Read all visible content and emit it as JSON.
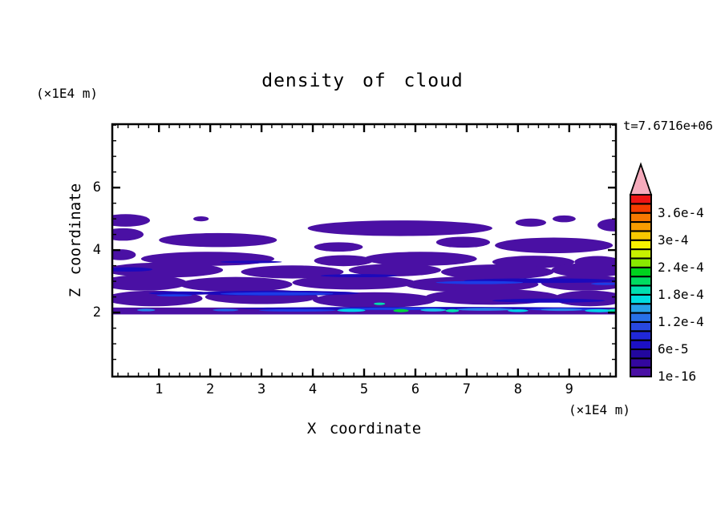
{
  "chart_data": {
    "type": "filled_contour",
    "title": "density of cloud",
    "time_annotation": "t=7.6716e+06",
    "xlabel": "X coordinate",
    "xunit": "(×1E4 m)",
    "ylabel": "Z coordinate",
    "yunit": "(×1E4 m)",
    "x_range": [
      0.09,
      9.91
    ],
    "x_ticks": [
      1,
      2,
      3,
      4,
      5,
      6,
      7,
      8,
      9
    ],
    "x_minor_step": 0.2,
    "z_range": [
      -0.05,
      8.03
    ],
    "z_ticks": [
      2,
      4,
      6
    ],
    "z_minor_step": 0.5,
    "grid": false,
    "frame_color": "#000000",
    "background_color": "#ffffff",
    "colorbar": {
      "segments": 20,
      "segment_value_step": "2e-5",
      "boundary_labels_bottom_up": [
        "1e-16",
        "6e-5",
        "1.2e-4",
        "1.8e-4",
        "2.4e-4",
        "3e-4",
        "3.6e-4"
      ],
      "label_every_n_segments": 3,
      "segment_colors_bottom_up": [
        "#4A10A4",
        "#3307A0",
        "#22079E",
        "#1C10C4",
        "#2028D8",
        "#2848E0",
        "#2870E8",
        "#28A0E8",
        "#00DCE0",
        "#00DFB0",
        "#00DC60",
        "#00D21E",
        "#88E800",
        "#C8F000",
        "#F8F000",
        "#F8C800",
        "#F89C00",
        "#F87800",
        "#F53C00",
        "#EE1414"
      ],
      "overflow_arrow_color": "#F5ABBC"
    },
    "cloud": {
      "description": "horizontal streaky cloud layer between z=2 and z=5.2 (x1E4 m); lowest contour level fills in purple; sharp flat cloud base at z=2",
      "fill_color": "#4A10A4",
      "navy_color": "#1C09BC",
      "blue_color": "#1C3CE6",
      "base_altitude": 2.0,
      "top_altitude": 5.2,
      "baseline_band": {
        "x0": 0.09,
        "x1": 9.91,
        "z0": 1.94,
        "z1": 2.16
      },
      "purple_blobs": [
        [
          0.35,
          4.95,
          0.95,
          0.4
        ],
        [
          1.82,
          5.0,
          0.3,
          0.16
        ],
        [
          5.7,
          4.7,
          3.6,
          0.5
        ],
        [
          8.25,
          4.88,
          0.6,
          0.26
        ],
        [
          8.9,
          5.0,
          0.45,
          0.22
        ],
        [
          9.85,
          4.8,
          0.6,
          0.4
        ],
        [
          0.3,
          4.5,
          0.8,
          0.4
        ],
        [
          2.15,
          4.32,
          2.3,
          0.45
        ],
        [
          4.5,
          4.1,
          0.95,
          0.3
        ],
        [
          6.93,
          4.25,
          1.05,
          0.35
        ],
        [
          8.7,
          4.15,
          2.3,
          0.5
        ],
        [
          0.25,
          3.85,
          0.6,
          0.35
        ],
        [
          1.95,
          3.72,
          2.6,
          0.45
        ],
        [
          4.6,
          3.66,
          1.15,
          0.35
        ],
        [
          6.1,
          3.72,
          2.2,
          0.45
        ],
        [
          8.3,
          3.62,
          1.6,
          0.4
        ],
        [
          9.55,
          3.62,
          0.9,
          0.38
        ],
        [
          1.1,
          3.36,
          2.3,
          0.48
        ],
        [
          3.6,
          3.3,
          2.0,
          0.42
        ],
        [
          5.6,
          3.36,
          1.8,
          0.4
        ],
        [
          7.6,
          3.3,
          2.2,
          0.48
        ],
        [
          9.4,
          3.36,
          1.5,
          0.45
        ],
        [
          0.7,
          2.95,
          1.7,
          0.5
        ],
        [
          2.5,
          2.9,
          2.2,
          0.48
        ],
        [
          4.8,
          2.96,
          2.4,
          0.45
        ],
        [
          7.1,
          2.9,
          2.6,
          0.5
        ],
        [
          9.3,
          2.95,
          1.7,
          0.5
        ],
        [
          0.9,
          2.45,
          1.9,
          0.5
        ],
        [
          3.0,
          2.5,
          2.2,
          0.46
        ],
        [
          5.2,
          2.4,
          2.4,
          0.5
        ],
        [
          7.5,
          2.5,
          2.6,
          0.5
        ],
        [
          9.4,
          2.45,
          1.4,
          0.5
        ]
      ],
      "navy_streaks": [
        [
          0.4,
          3.38,
          0.95,
          0.14
        ],
        [
          1.45,
          2.62,
          1.3,
          0.11
        ],
        [
          3.3,
          2.62,
          3.2,
          0.16
        ],
        [
          4.9,
          3.18,
          1.5,
          0.1
        ],
        [
          8.45,
          3.02,
          3.0,
          0.15
        ],
        [
          8.6,
          2.38,
          2.2,
          0.13
        ],
        [
          6.2,
          2.13,
          7.4,
          0.1
        ],
        [
          2.8,
          3.62,
          1.2,
          0.08
        ]
      ],
      "blue_streaks": [
        [
          3.3,
          2.6,
          2.2,
          0.1
        ],
        [
          7.25,
          2.96,
          1.7,
          0.1
        ],
        [
          5.5,
          2.12,
          2.0,
          0.08
        ],
        [
          8.95,
          2.1,
          1.5,
          0.08
        ],
        [
          9.7,
          2.92,
          0.55,
          0.08
        ],
        [
          3.7,
          2.07,
          1.5,
          0.08
        ],
        [
          1.3,
          2.55,
          0.7,
          0.07
        ]
      ],
      "bright_spots": [
        [
          0.75,
          2.08,
          0.35,
          0.08,
          "#2583E8"
        ],
        [
          2.3,
          2.08,
          0.5,
          0.08,
          "#2060E8"
        ],
        [
          4.75,
          2.07,
          0.55,
          0.1,
          "#00CEE8"
        ],
        [
          5.3,
          2.28,
          0.22,
          0.08,
          "#00DFAC"
        ],
        [
          5.72,
          2.06,
          0.3,
          0.1,
          "#00D23C"
        ],
        [
          6.35,
          2.08,
          0.5,
          0.09,
          "#18C0E8"
        ],
        [
          6.72,
          2.06,
          0.26,
          0.1,
          "#00DFAC"
        ],
        [
          7.35,
          2.1,
          1.1,
          0.09,
          "#2583E8"
        ],
        [
          8.0,
          2.06,
          0.4,
          0.09,
          "#00CEE8"
        ],
        [
          8.85,
          2.09,
          0.8,
          0.08,
          "#2583E8"
        ],
        [
          9.58,
          2.06,
          0.55,
          0.1,
          "#00CEE8"
        ],
        [
          9.88,
          2.07,
          0.25,
          0.09,
          "#00DFB0"
        ]
      ]
    }
  }
}
